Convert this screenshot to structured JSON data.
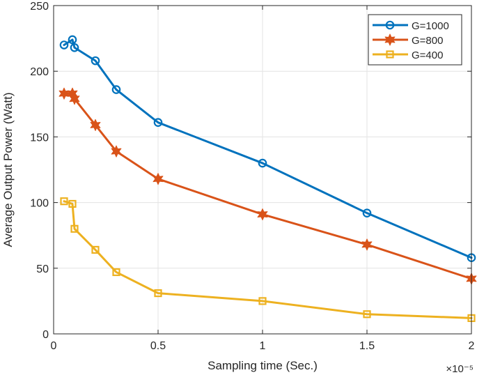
{
  "chart_data": {
    "type": "line",
    "title": "",
    "xlabel": "Sampling time (Sec.)",
    "ylabel": "Average Output Power (Watt)",
    "x_exponent": "×10⁻⁵",
    "xlim": [
      0,
      2
    ],
    "ylim": [
      0,
      250
    ],
    "xticks": [
      0,
      0.5,
      1,
      1.5,
      2
    ],
    "xtick_labels": [
      "0",
      "0.5",
      "1",
      "1.5",
      "2"
    ],
    "yticks": [
      0,
      50,
      100,
      150,
      200,
      250
    ],
    "ytick_labels": [
      "0",
      "50",
      "100",
      "150",
      "200",
      "250"
    ],
    "grid": true,
    "legend_position": "top-right",
    "series": [
      {
        "name": "G=1000",
        "color": "#0072BD",
        "marker": "circle",
        "x": [
          0.05,
          0.09,
          0.1,
          0.2,
          0.3,
          0.5,
          1.0,
          1.5,
          2.0
        ],
        "y": [
          220,
          224,
          218,
          208,
          186,
          161,
          130,
          92,
          58
        ]
      },
      {
        "name": "G=800",
        "color": "#D95319",
        "marker": "star",
        "x": [
          0.05,
          0.09,
          0.1,
          0.2,
          0.3,
          0.5,
          1.0,
          1.5,
          2.0
        ],
        "y": [
          183,
          183,
          179,
          159,
          139,
          118,
          91,
          68,
          42
        ]
      },
      {
        "name": "G=400",
        "color": "#EDB120",
        "marker": "square",
        "x": [
          0.05,
          0.09,
          0.1,
          0.2,
          0.3,
          0.5,
          1.0,
          1.5,
          2.0
        ],
        "y": [
          101,
          99,
          80,
          64,
          47,
          31,
          25,
          15,
          12
        ]
      }
    ]
  }
}
